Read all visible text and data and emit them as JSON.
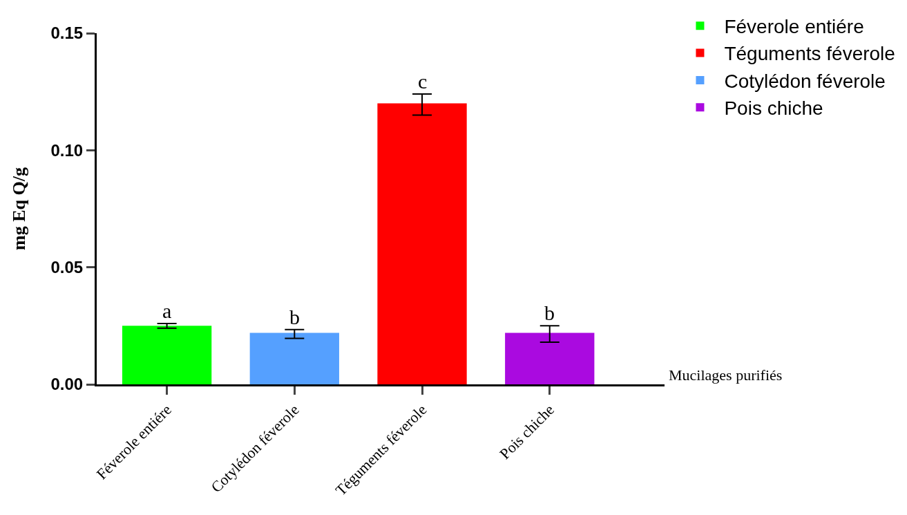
{
  "chart_data": {
    "type": "bar",
    "ylabel": "mg Eq Q/g",
    "categories": [
      "Féverole entiére",
      "Cotylédon féverole",
      "Téguments féverole",
      "Pois chiche"
    ],
    "series": [
      {
        "name": "Féverole entiére",
        "color": "#00ff00",
        "values": [
          0.025,
          null,
          null,
          null
        ],
        "errors": [
          0.001,
          null,
          null,
          null
        ]
      },
      {
        "name": "Téguments féverole",
        "color": "#ff0000",
        "values": [
          null,
          null,
          0.12,
          null
        ],
        "errors": [
          null,
          null,
          [
            0.115,
            0.124
          ],
          null
        ]
      },
      {
        "name": "Cotylédon féverole",
        "color": "#55a0ff",
        "values": [
          null,
          0.022,
          null,
          null
        ],
        "errors": [
          null,
          [
            0.0196,
            0.0234
          ],
          null,
          null
        ]
      },
      {
        "name": "Pois chiche",
        "color": "#aa0ae0",
        "values": [
          null,
          null,
          null,
          0.022
        ],
        "errors": [
          null,
          null,
          null,
          [
            0.018,
            0.025
          ]
        ]
      }
    ],
    "ylim": [
      0,
      0.15
    ],
    "yticks": [
      {
        "value": 0,
        "label": "0.00"
      },
      {
        "value": 0.05,
        "label": "0.05"
      },
      {
        "value": 0.1,
        "label": "0.10"
      },
      {
        "value": 0.15,
        "label": "0.15"
      }
    ],
    "grid": false,
    "legend": "top right",
    "annotations": [
      {
        "text": "a",
        "x": "Féverole entiére",
        "y": 0.026
      },
      {
        "text": "b",
        "x": "Cotylédon féverole",
        "y": 0.0234
      },
      {
        "text": "c",
        "x": "Téguments féverole",
        "y": 0.124
      },
      {
        "text": "b",
        "x": "Pois chiche",
        "y": 0.025
      },
      "Mucilages purifiés"
    ]
  }
}
